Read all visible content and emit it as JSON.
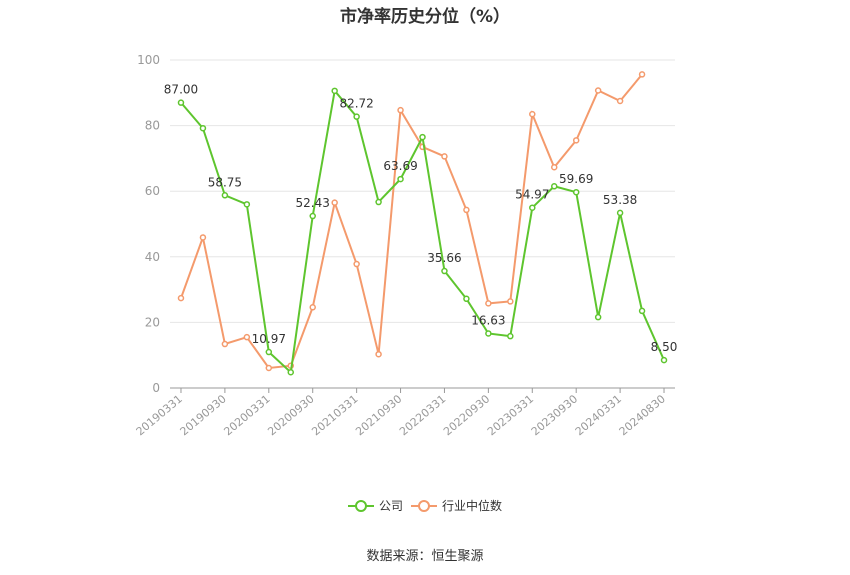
{
  "chart_data": {
    "type": "line",
    "title": "市净率历史分位（%）",
    "source": "数据来源：恒生聚源",
    "ylim": [
      0,
      100
    ],
    "yticks": [
      0,
      20,
      40,
      60,
      80,
      100
    ],
    "grid": true,
    "legend_position": "bottom-center",
    "x": [
      "20190331",
      "20190630",
      "20190930",
      "20191231",
      "20200331",
      "20200630",
      "20200930",
      "20201231",
      "20210331",
      "20210630",
      "20210930",
      "20211231",
      "20220331",
      "20220630",
      "20220930",
      "20221231",
      "20230331",
      "20230630",
      "20230930",
      "20231231",
      "20240331",
      "20240630",
      "20240830"
    ],
    "xtick_labels": [
      "20190331",
      "20190930",
      "20200331",
      "20200930",
      "20210331",
      "20210930",
      "20220331",
      "20220930",
      "20230331",
      "20230930",
      "20240331",
      "20240830"
    ],
    "series": [
      {
        "name": "公司",
        "color": "#5ec52e",
        "values": [
          87.0,
          79.2,
          58.75,
          56.0,
          10.97,
          4.8,
          52.43,
          90.6,
          82.72,
          56.7,
          63.69,
          76.5,
          35.66,
          27.2,
          16.63,
          15.8,
          54.97,
          61.5,
          59.69,
          21.6,
          53.38,
          23.5,
          8.5
        ],
        "labels": [
          "87.00",
          null,
          "58.75",
          null,
          "10.97",
          null,
          "52.43",
          null,
          "82.72",
          null,
          "63.69",
          null,
          "35.66",
          null,
          "16.63",
          null,
          "54.97",
          null,
          "59.69",
          null,
          "53.38",
          null,
          "8.50"
        ]
      },
      {
        "name": "行业中位数",
        "color": "#f49a6c",
        "values": [
          27.4,
          45.9,
          13.4,
          15.5,
          6.1,
          6.8,
          24.6,
          56.5,
          37.8,
          10.3,
          84.7,
          73.5,
          70.6,
          54.3,
          25.8,
          26.4,
          83.5,
          67.3,
          75.5,
          90.7,
          87.5,
          95.6,
          null
        ]
      }
    ]
  }
}
